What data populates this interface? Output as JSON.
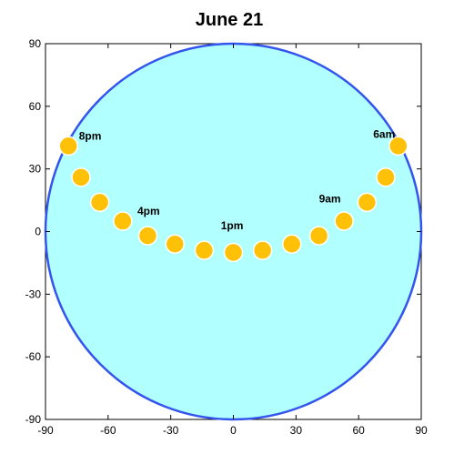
{
  "chart_data": {
    "type": "scatter",
    "title": "June 21",
    "xlim": [
      -90,
      90
    ],
    "ylim": [
      -90,
      90
    ],
    "xticks": [
      -90,
      -60,
      -30,
      0,
      30,
      60,
      90
    ],
    "yticks": [
      90,
      60,
      30,
      0,
      -30,
      -60,
      -90
    ],
    "grid": false,
    "horizon_circle": {
      "center": [
        0,
        0
      ],
      "radius": 90,
      "fill": "#b2ffff",
      "stroke": "#3355ee"
    },
    "marker_color": "#ffc107",
    "marker_edge": "#ffffff",
    "points": [
      {
        "x": 79,
        "y": 41
      },
      {
        "x": 73,
        "y": 26
      },
      {
        "x": 64,
        "y": 14
      },
      {
        "x": 53,
        "y": 5
      },
      {
        "x": 41,
        "y": -2
      },
      {
        "x": 28,
        "y": -6
      },
      {
        "x": 14,
        "y": -9
      },
      {
        "x": 0,
        "y": -10
      },
      {
        "x": -14,
        "y": -9
      },
      {
        "x": -28,
        "y": -6
      },
      {
        "x": -41,
        "y": -2
      },
      {
        "x": -53,
        "y": 5
      },
      {
        "x": -64,
        "y": 14
      },
      {
        "x": -73,
        "y": 26
      },
      {
        "x": -79,
        "y": 41
      }
    ],
    "annotations": [
      {
        "text": "6am",
        "x": 67,
        "y": 45
      },
      {
        "text": "9am",
        "x": 41,
        "y": 14
      },
      {
        "text": "1pm",
        "x": -6,
        "y": 1
      },
      {
        "text": "4pm",
        "x": -46,
        "y": 8
      },
      {
        "text": "8pm",
        "x": -74,
        "y": 44
      }
    ]
  }
}
